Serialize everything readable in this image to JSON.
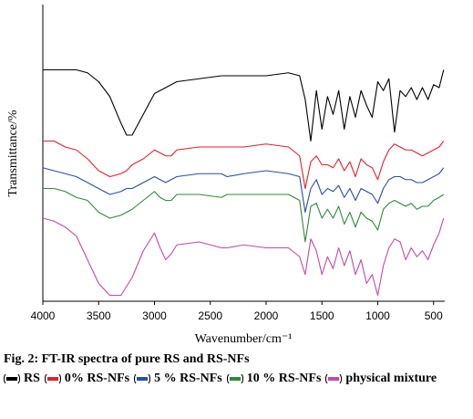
{
  "chart_data": {
    "type": "line",
    "x_label": "Wavenumber/cm⁻¹",
    "y_label": "Transmittance/%",
    "caption": "Fig. 2: FT-IR spectra of pure RS and RS-NFs",
    "x": [
      4000,
      3900,
      3800,
      3700,
      3600,
      3500,
      3400,
      3300,
      3250,
      3200,
      3100,
      3000,
      2950,
      2900,
      2850,
      2800,
      2600,
      2400,
      2350,
      2200,
      2000,
      1800,
      1700,
      1650,
      1600,
      1550,
      1500,
      1450,
      1400,
      1350,
      1300,
      1250,
      1200,
      1150,
      1100,
      1050,
      1000,
      950,
      900,
      850,
      800,
      750,
      700,
      650,
      600,
      550,
      500,
      450,
      410
    ],
    "xlim": [
      4000,
      400
    ],
    "xticks": [
      4000,
      3500,
      3000,
      2500,
      2000,
      1500,
      1000,
      500
    ],
    "ylim": [
      0,
      100
    ],
    "series": [
      {
        "name": "RS",
        "color": "#000000",
        "values": [
          78,
          78,
          78,
          78,
          77,
          74,
          69,
          60,
          56,
          56,
          63,
          70,
          71,
          72,
          73,
          74,
          75,
          76,
          76,
          76,
          76,
          77,
          76,
          68,
          54,
          71,
          58,
          69,
          63,
          71,
          58,
          69,
          62,
          71,
          66,
          62,
          74,
          71,
          75,
          57,
          71,
          69,
          72,
          68,
          72,
          68,
          73,
          72,
          78
        ]
      },
      {
        "name": "0% RS-NFs",
        "color": "#e3202b",
        "values": [
          54,
          54,
          52,
          51,
          48,
          44,
          42,
          43,
          44,
          46,
          48,
          51,
          50,
          49,
          49,
          51,
          52,
          52,
          52,
          52,
          53,
          52,
          49,
          38,
          47,
          49,
          46,
          46,
          45,
          48,
          44,
          47,
          42,
          48,
          46,
          45,
          41,
          47,
          51,
          53,
          52,
          51,
          51,
          50,
          49,
          50,
          51,
          52,
          54
        ]
      },
      {
        "name": "5 % RS-NFs",
        "color": "#2a4f9e",
        "values": [
          45,
          44,
          43,
          42,
          40,
          38,
          36,
          37,
          38,
          38,
          40,
          42,
          41,
          40,
          41,
          42,
          43,
          43,
          42,
          43,
          44,
          43,
          42,
          30,
          38,
          41,
          36,
          38,
          37,
          39,
          35,
          38,
          34,
          38,
          37,
          36,
          33,
          38,
          41,
          42,
          42,
          41,
          41,
          40,
          40,
          41,
          42,
          43,
          45
        ]
      },
      {
        "name": "10 % RS-NFs",
        "color": "#2f8a3a",
        "values": [
          38,
          38,
          37,
          35,
          34,
          30,
          28,
          29,
          30,
          31,
          34,
          37,
          35,
          34,
          34,
          36,
          36,
          35,
          36,
          36,
          36,
          36,
          34,
          20,
          32,
          33,
          28,
          31,
          28,
          32,
          26,
          30,
          25,
          30,
          28,
          27,
          24,
          31,
          33,
          34,
          33,
          32,
          33,
          31,
          32,
          32,
          34,
          35,
          36
        ]
      },
      {
        "name": "physical mixture",
        "color": "#c04aa8",
        "values": [
          28,
          27,
          25,
          22,
          14,
          6,
          2,
          2,
          5,
          8,
          17,
          23,
          18,
          14,
          16,
          19,
          20,
          18,
          18,
          19,
          18,
          18,
          15,
          9,
          21,
          17,
          9,
          15,
          11,
          18,
          12,
          17,
          9,
          14,
          6,
          9,
          2,
          12,
          18,
          21,
          20,
          14,
          18,
          15,
          17,
          14,
          19,
          23,
          28
        ]
      }
    ]
  }
}
